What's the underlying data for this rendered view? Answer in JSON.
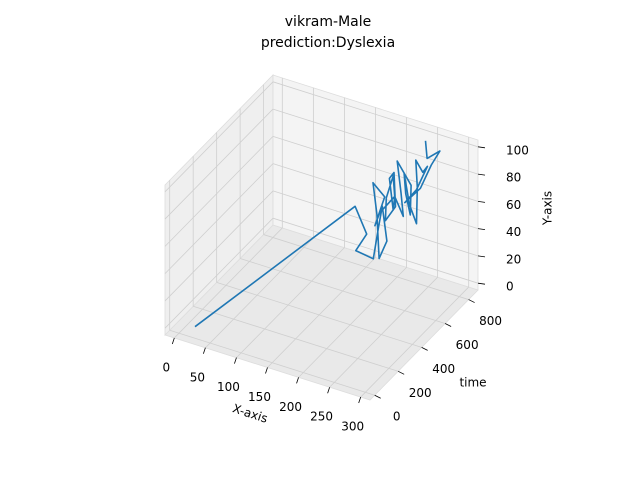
{
  "chart_data": {
    "type": "line3d",
    "title": "vikram-Male",
    "subtitle": "prediction:Dyslexia",
    "xlabel": "X-axis",
    "ylabel": "time",
    "zlabel": "Y-axis",
    "color": "#1f77b4",
    "grid": true,
    "x": [
      20,
      170,
      185,
      175,
      190,
      200,
      195,
      210,
      205,
      190,
      180,
      195,
      185,
      200,
      215,
      205,
      195,
      210,
      220,
      200,
      190,
      205,
      215,
      225,
      210,
      200,
      230,
      240,
      225,
      215,
      235,
      250,
      240,
      230,
      245,
      260,
      250,
      235,
      245,
      255,
      265,
      250,
      240
    ],
    "y": [
      30,
      600,
      620,
      580,
      650,
      640,
      700,
      660,
      620,
      680,
      700,
      720,
      690,
      650,
      700,
      740,
      760,
      720,
      680,
      700,
      760,
      740,
      700,
      720,
      780,
      800,
      760,
      700,
      740,
      780,
      720,
      700,
      760,
      800,
      780,
      740,
      700,
      680,
      760,
      800,
      820,
      790,
      830
    ],
    "z": [
      0,
      60,
      40,
      30,
      20,
      45,
      55,
      35,
      25,
      50,
      70,
      60,
      40,
      55,
      65,
      50,
      70,
      80,
      60,
      45,
      55,
      75,
      65,
      50,
      60,
      80,
      70,
      55,
      65,
      75,
      60,
      50,
      70,
      85,
      80,
      90,
      75,
      65,
      70,
      85,
      95,
      90,
      98
    ],
    "xlim": [
      -15,
      315
    ],
    "xticks": [
      0,
      50,
      100,
      150,
      200,
      250,
      300
    ],
    "ylim": [
      -40,
      880
    ],
    "yticks": [
      0,
      200,
      400,
      600,
      800
    ],
    "zlim": [
      -5,
      105
    ],
    "zticks": [
      0,
      20,
      40,
      60,
      80,
      100
    ]
  }
}
